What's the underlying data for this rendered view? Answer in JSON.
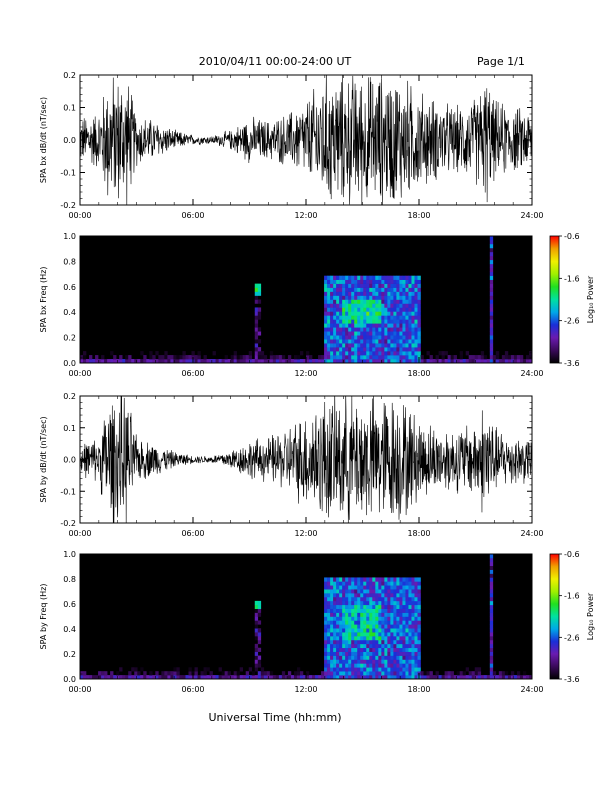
{
  "header": {
    "date_range": "2010/04/11  00:00-24:00 UT",
    "page": "Page 1/1"
  },
  "footer": {
    "xlabel": "Universal Time (hh:mm)"
  },
  "chart_data": [
    {
      "type": "line",
      "ylabel": "SPA bx dB/dt (nT/sec)",
      "x_ticks": [
        "00:00",
        "06:00",
        "12:00",
        "18:00",
        "24:00"
      ],
      "xlim": [
        0,
        24
      ],
      "ylim": [
        -0.2,
        0.2
      ],
      "y_ticks": [
        "-0.2",
        "-0.1",
        "0.0",
        "0.1",
        "0.2"
      ],
      "amplitude_envelope": {
        "hours": [
          0,
          1,
          1.5,
          2,
          2.5,
          3,
          4,
          5,
          6,
          7,
          8,
          9,
          10,
          11,
          12,
          13,
          14,
          15,
          16,
          17,
          18,
          19,
          20,
          21,
          21.6,
          22,
          23,
          24
        ],
        "amplitude": [
          0.07,
          0.09,
          0.2,
          0.2,
          0.2,
          0.08,
          0.06,
          0.03,
          0.015,
          0.012,
          0.03,
          0.07,
          0.06,
          0.08,
          0.12,
          0.2,
          0.2,
          0.2,
          0.2,
          0.2,
          0.15,
          0.12,
          0.1,
          0.13,
          0.2,
          0.12,
          0.1,
          0.09
        ]
      }
    },
    {
      "type": "heatmap",
      "ylabel": "SPA bx Freq (Hz)",
      "x_ticks": [
        "00:00",
        "06:00",
        "12:00",
        "18:00",
        "24:00"
      ],
      "xlim": [
        0,
        24
      ],
      "ylim": [
        0.0,
        1.0
      ],
      "y_ticks": [
        "0.0",
        "0.2",
        "0.4",
        "0.6",
        "0.8",
        "1.0"
      ],
      "colorbar": {
        "label": "Log₁₀ Power",
        "ticks": [
          "-0.6",
          "-1.6",
          "-2.6",
          "-3.6"
        ],
        "range": [
          -3.6,
          -0.6
        ],
        "colors": [
          "#000000",
          "#3a0a5a",
          "#6a1bb0",
          "#1a2fd8",
          "#00a8e8",
          "#00e0a0",
          "#20e020",
          "#a0f000",
          "#f0f000",
          "#f0a000",
          "#ff0000"
        ]
      },
      "features": [
        {
          "hours": [
            13,
            18
          ],
          "freq": [
            0.0,
            0.7
          ],
          "log_power": -2.4
        },
        {
          "hours": [
            14,
            16
          ],
          "freq": [
            0.3,
            0.5
          ],
          "log_power": -1.9
        },
        {
          "hours": [
            9.3,
            9.6
          ],
          "freq": [
            0.54,
            0.62
          ],
          "log_power": -1.8
        },
        {
          "hours": [
            21.7,
            21.9
          ],
          "freq": [
            0.0,
            1.0
          ],
          "log_power": -2.6
        }
      ]
    },
    {
      "type": "line",
      "ylabel": "SPA by dB/dt (nT/sec)",
      "x_ticks": [
        "00:00",
        "06:00",
        "12:00",
        "18:00",
        "24:00"
      ],
      "xlim": [
        0,
        24
      ],
      "ylim": [
        -0.2,
        0.2
      ],
      "y_ticks": [
        "-0.2",
        "-0.1",
        "0.0",
        "0.1",
        "0.2"
      ],
      "amplitude_envelope": {
        "hours": [
          0,
          1,
          1.5,
          2,
          2.5,
          3,
          4,
          5,
          6,
          7,
          8,
          9,
          10,
          11,
          12,
          13,
          14,
          15,
          16,
          17,
          18,
          19,
          20,
          21,
          21.6,
          22,
          23,
          24
        ],
        "amplitude": [
          0.05,
          0.07,
          0.2,
          0.2,
          0.2,
          0.07,
          0.05,
          0.025,
          0.012,
          0.012,
          0.03,
          0.06,
          0.07,
          0.1,
          0.15,
          0.2,
          0.2,
          0.2,
          0.2,
          0.2,
          0.13,
          0.1,
          0.1,
          0.12,
          0.2,
          0.1,
          0.08,
          0.07
        ]
      }
    },
    {
      "type": "heatmap",
      "ylabel": "SPA by Freq (Hz)",
      "x_ticks": [
        "00:00",
        "06:00",
        "12:00",
        "18:00",
        "24:00"
      ],
      "xlim": [
        0,
        24
      ],
      "ylim": [
        0.0,
        1.0
      ],
      "y_ticks": [
        "0.0",
        "0.2",
        "0.4",
        "0.6",
        "0.8",
        "1.0"
      ],
      "colorbar": {
        "label": "Log₁₀ Power",
        "ticks": [
          "-0.6",
          "-1.6",
          "-2.6",
          "-3.6"
        ],
        "range": [
          -3.6,
          -0.6
        ],
        "colors": [
          "#000000",
          "#3a0a5a",
          "#6a1bb0",
          "#1a2fd8",
          "#00a8e8",
          "#00e0a0",
          "#20e020",
          "#a0f000",
          "#f0f000",
          "#f0a000",
          "#ff0000"
        ]
      },
      "features": [
        {
          "hours": [
            13,
            18
          ],
          "freq": [
            0.0,
            0.8
          ],
          "log_power": -2.4
        },
        {
          "hours": [
            14,
            16
          ],
          "freq": [
            0.3,
            0.6
          ],
          "log_power": -2.0
        },
        {
          "hours": [
            9.3,
            9.6
          ],
          "freq": [
            0.55,
            0.62
          ],
          "log_power": -1.9
        },
        {
          "hours": [
            21.7,
            21.9
          ],
          "freq": [
            0.0,
            1.0
          ],
          "log_power": -2.6
        }
      ]
    }
  ]
}
